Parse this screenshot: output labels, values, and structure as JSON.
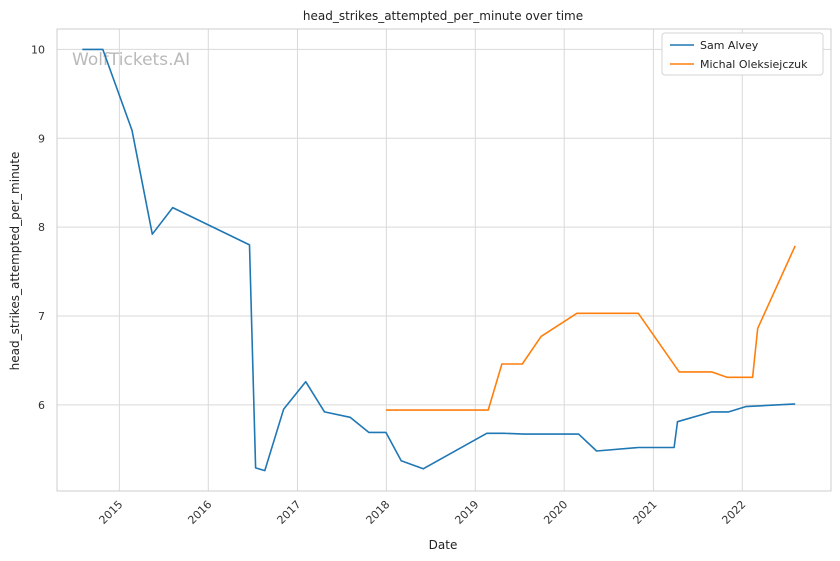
{
  "chart_data": {
    "type": "line",
    "title": "head_strikes_attempted_per_minute over time",
    "xlabel": "Date",
    "ylabel": "head_strikes_attempted_per_minute",
    "watermark": "WolfTickets.AI",
    "x_ticks": [
      "2015",
      "2016",
      "2017",
      "2018",
      "2019",
      "2020",
      "2021",
      "2022"
    ],
    "y_ticks": [
      "6",
      "7",
      "8",
      "9",
      "10"
    ],
    "xlim": [
      "2014-04-20",
      "2022-12-31"
    ],
    "ylim": [
      5.03,
      10.23
    ],
    "grid": true,
    "legend_position": "top-right",
    "colors": {
      "series_0": "#1f77b4",
      "series_1": "#ff7f0e",
      "grid": "#d9d9d9",
      "axes": "#cccccc"
    },
    "series": [
      {
        "name": "Sam Alvey",
        "points": [
          [
            "2014-08-02",
            10.0
          ],
          [
            "2014-10-25",
            10.0
          ],
          [
            "2015-02-22",
            9.09
          ],
          [
            "2015-05-16",
            7.92
          ],
          [
            "2015-08-08",
            8.22
          ],
          [
            "2016-06-18",
            7.8
          ],
          [
            "2016-07-13",
            5.29
          ],
          [
            "2016-08-20",
            5.26
          ],
          [
            "2016-11-05",
            5.95
          ],
          [
            "2017-02-04",
            6.26
          ],
          [
            "2017-04-22",
            5.92
          ],
          [
            "2017-08-05",
            5.86
          ],
          [
            "2017-10-21",
            5.69
          ],
          [
            "2017-12-30",
            5.69
          ],
          [
            "2018-03-03",
            5.37
          ],
          [
            "2018-06-01",
            5.28
          ],
          [
            "2019-02-17",
            5.68
          ],
          [
            "2019-04-27",
            5.68
          ],
          [
            "2019-07-20",
            5.67
          ],
          [
            "2020-02-29",
            5.67
          ],
          [
            "2020-05-13",
            5.48
          ],
          [
            "2020-10-31",
            5.52
          ],
          [
            "2021-03-27",
            5.52
          ],
          [
            "2021-04-10",
            5.81
          ],
          [
            "2021-08-28",
            5.92
          ],
          [
            "2021-11-06",
            5.92
          ],
          [
            "2022-01-15",
            5.98
          ],
          [
            "2022-08-06",
            6.01
          ]
        ]
      },
      {
        "name": "Michal Oleksiejczuk",
        "points": [
          [
            "2017-12-30",
            5.94
          ],
          [
            "2019-02-23",
            5.94
          ],
          [
            "2019-04-20",
            6.46
          ],
          [
            "2019-07-13",
            6.46
          ],
          [
            "2019-09-28",
            6.77
          ],
          [
            "2020-02-22",
            7.03
          ],
          [
            "2020-10-31",
            7.03
          ],
          [
            "2021-04-17",
            6.37
          ],
          [
            "2021-08-28",
            6.37
          ],
          [
            "2021-10-30",
            6.31
          ],
          [
            "2022-02-12",
            6.31
          ],
          [
            "2022-03-05",
            6.86
          ],
          [
            "2022-08-06",
            7.79
          ]
        ]
      }
    ]
  }
}
